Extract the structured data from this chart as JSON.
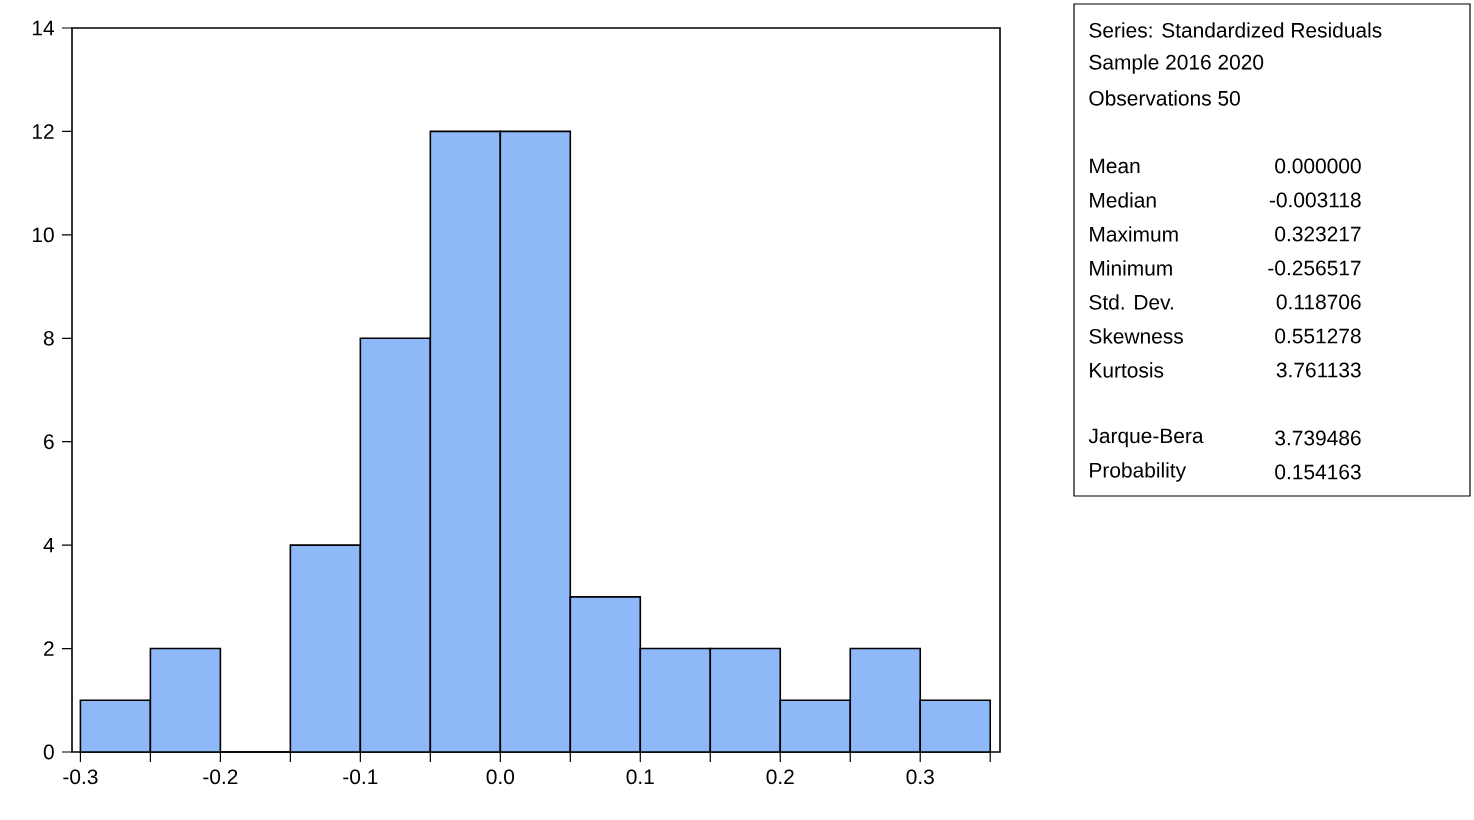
{
  "chart_data": {
    "type": "histogram",
    "bins": [
      -0.3,
      -0.25,
      -0.2,
      -0.15,
      -0.1,
      -0.05,
      0.0,
      0.05,
      0.1,
      0.15,
      0.2,
      0.25,
      0.3,
      0.35
    ],
    "values": [
      1,
      2,
      0,
      4,
      8,
      12,
      12,
      3,
      2,
      2,
      1,
      2,
      1
    ],
    "color": "#8fb8f8",
    "xlim": [
      -0.306,
      0.357
    ],
    "ylim": [
      0,
      14
    ],
    "xticks": [
      {
        "value": -0.3,
        "label": "-0.3"
      },
      {
        "value": -0.25,
        "label": null
      },
      {
        "value": -0.2,
        "label": "-0.2"
      },
      {
        "value": -0.15,
        "label": null
      },
      {
        "value": -0.1,
        "label": "-0.1"
      },
      {
        "value": -0.05,
        "label": null
      },
      {
        "value": 0.0,
        "label": "0.0"
      },
      {
        "value": 0.05,
        "label": null
      },
      {
        "value": 0.1,
        "label": "0.1"
      },
      {
        "value": 0.15,
        "label": null
      },
      {
        "value": 0.2,
        "label": "0.2"
      },
      {
        "value": 0.25,
        "label": null
      },
      {
        "value": 0.3,
        "label": "0.3"
      },
      {
        "value": 0.35,
        "label": null
      }
    ],
    "yticks": [
      0,
      2,
      4,
      6,
      8,
      10,
      12,
      14
    ],
    "annotations": [
      "Series: Standardized Residuals",
      "Sample 2016 2020",
      "Observations 50",
      "Mean",
      "0.000000",
      "Median",
      "-0.003118",
      "Maximum",
      "0.323217",
      "Minimum",
      "-0.256517",
      "Std. Dev.",
      "0.118706",
      "Skewness",
      "0.551278",
      "Kurtosis",
      "3.761133",
      "Jarque-Bera",
      "3.739486",
      "Probability",
      "0.154163"
    ]
  }
}
